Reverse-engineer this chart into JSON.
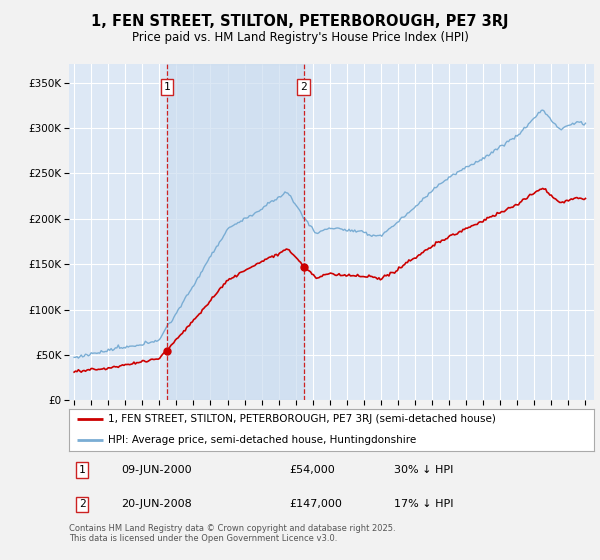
{
  "title": "1, FEN STREET, STILTON, PETERBOROUGH, PE7 3RJ",
  "subtitle": "Price paid vs. HM Land Registry's House Price Index (HPI)",
  "red_label": "1, FEN STREET, STILTON, PETERBOROUGH, PE7 3RJ (semi-detached house)",
  "blue_label": "HPI: Average price, semi-detached house, Huntingdonshire",
  "footer": "Contains HM Land Registry data © Crown copyright and database right 2025.\nThis data is licensed under the Open Government Licence v3.0.",
  "vline1_x": 2000.44,
  "vline2_x": 2008.46,
  "sale1_date": "09-JUN-2000",
  "sale1_price": "£54,000",
  "sale1_hpi": "30% ↓ HPI",
  "sale2_date": "20-JUN-2008",
  "sale2_price": "£147,000",
  "sale2_hpi": "17% ↓ HPI",
  "sale1_y": 54000,
  "sale2_y": 147000,
  "ylim": [
    0,
    370000
  ],
  "xlim": [
    1994.7,
    2025.5
  ],
  "plot_bg": "#dde8f5",
  "grid_color": "#ffffff",
  "red_color": "#cc0000",
  "blue_color": "#7aadd4",
  "vline_color": "#cc2222",
  "shade_color": "#ccddf0"
}
